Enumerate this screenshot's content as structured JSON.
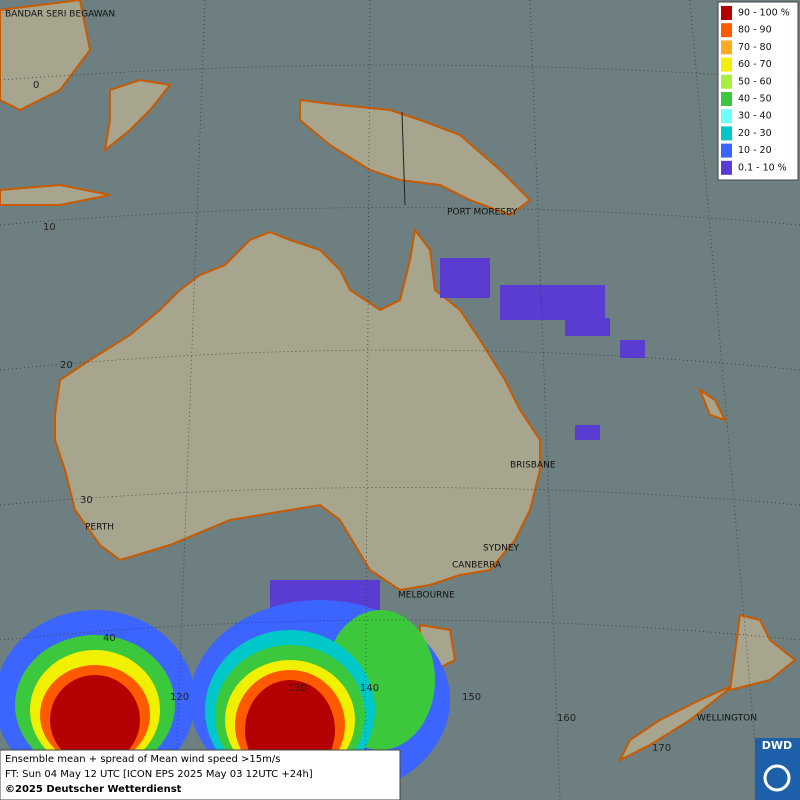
{
  "cities": [
    "BANDAR SERI BEGAWAN",
    "PORT MORESBY",
    "BRISBANE",
    "PERTH",
    "SYDNEY",
    "CANBERRA",
    "MELBOURNE",
    "WELLINGTON"
  ],
  "graticule": [
    "0",
    "10",
    "20",
    "30",
    "40",
    "120",
    "130",
    "140",
    "150",
    "160",
    "170"
  ],
  "legend": [
    {
      "label": "90 - 100 %",
      "color": "#b40000"
    },
    {
      "label": "80 - 90",
      "color": "#ff5a00"
    },
    {
      "label": "70 - 80",
      "color": "#ffaa20"
    },
    {
      "label": "60 - 70",
      "color": "#f0f000"
    },
    {
      "label": "50 - 60",
      "color": "#a8f040"
    },
    {
      "label": "40 - 50",
      "color": "#3cc83c"
    },
    {
      "label": "30 - 40",
      "color": "#70ffff"
    },
    {
      "label": "20 - 30",
      "color": "#00c8c8"
    },
    {
      "label": "10 - 20",
      "color": "#3c64ff"
    },
    {
      "label": "0.1 - 10 %",
      "color": "#5a3cd2"
    }
  ],
  "footer": [
    "Ensemble mean + spread of Mean wind speed >15m/s",
    "FT: Sun 04 May 12 UTC [ICON EPS 2025 May 03 12UTC +24h]",
    "©2025 Deutscher Wetterdienst"
  ],
  "logo": "DWD"
}
